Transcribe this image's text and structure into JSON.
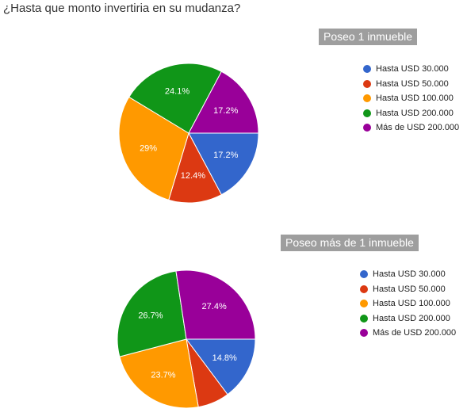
{
  "title": "¿Hasta que monto invertiria en su mudanza?",
  "chart_data": [
    {
      "type": "pie",
      "title": "Poseo 1 inmueble",
      "categories": [
        "Hasta USD 30.000",
        "Hasta USD 50.000",
        "Hasta USD 100.000",
        "Hasta USD 200.000",
        "Más de USD 200.000"
      ],
      "values": [
        17.2,
        12.4,
        29,
        24.1,
        17.2
      ],
      "data_labels": [
        "17.2%",
        "12.4%",
        "29%",
        "24.1%",
        "17.2%"
      ],
      "colors": [
        "#3366cc",
        "#dc3912",
        "#ff9900",
        "#109618",
        "#990099"
      ],
      "legend": "right"
    },
    {
      "type": "pie",
      "title": "Poseo más de 1 inmueble",
      "categories": [
        "Hasta USD 30.000",
        "Hasta USD 50.000",
        "Hasta USD 100.000",
        "Hasta USD 200.000",
        "Más de USD 200.000"
      ],
      "values": [
        14.8,
        7.4,
        23.7,
        26.7,
        27.4
      ],
      "data_labels": [
        "14.8%",
        "",
        "23.7%",
        "26.7%",
        "27.4%"
      ],
      "colors": [
        "#3366cc",
        "#dc3912",
        "#ff9900",
        "#109618",
        "#990099"
      ],
      "legend": "right"
    }
  ]
}
